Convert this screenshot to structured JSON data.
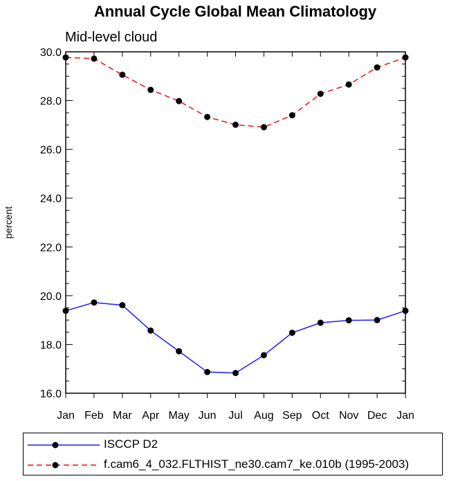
{
  "chart_data": {
    "type": "line",
    "title": "Annual Cycle Global Mean Climatology",
    "subtitle": "Mid-level cloud",
    "xlabel": "",
    "ylabel": "percent",
    "categories": [
      "Jan",
      "Feb",
      "Mar",
      "Apr",
      "May",
      "Jun",
      "Jul",
      "Aug",
      "Sep",
      "Oct",
      "Nov",
      "Dec",
      "Jan"
    ],
    "ylim": [
      16.0,
      30.0
    ],
    "yticks": [
      "16.0",
      "18.0",
      "20.0",
      "22.0",
      "24.0",
      "26.0",
      "28.0",
      "30.0"
    ],
    "series": [
      {
        "name": "ISCCP D2",
        "color": "#1a1aff",
        "dash": "solid",
        "values": [
          19.38,
          19.72,
          19.61,
          18.57,
          17.72,
          16.87,
          16.83,
          17.56,
          18.48,
          18.89,
          18.99,
          19.0,
          19.38
        ]
      },
      {
        "name": "f.cam6_4_032.FLTHIST_ne30.cam7_ke.010b (1995-2003)",
        "color": "#ee1111",
        "dash": "dashed",
        "values": [
          29.77,
          29.72,
          29.06,
          28.44,
          27.98,
          27.33,
          27.01,
          26.91,
          27.4,
          28.28,
          28.66,
          29.36,
          29.77
        ]
      }
    ]
  }
}
